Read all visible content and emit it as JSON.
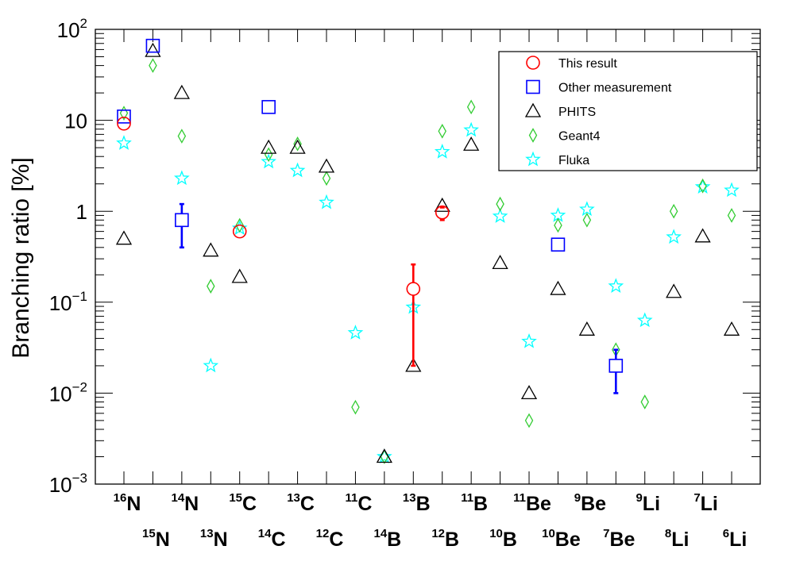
{
  "chart_data": {
    "type": "scatter",
    "ylabel": "Branching ratio [%]",
    "yscale": "log",
    "ylim": [
      0.001,
      100
    ],
    "y_tick_labels": [
      {
        "base": "10",
        "exp": "2"
      },
      {
        "base": "10",
        "exp": ""
      },
      {
        "base": "1",
        "exp": ""
      },
      {
        "base": "10",
        "exp": "−1"
      },
      {
        "base": "10",
        "exp": "−2"
      },
      {
        "base": "10",
        "exp": "−3"
      }
    ],
    "categories": [
      {
        "mass": "16",
        "el": "N"
      },
      {
        "mass": "15",
        "el": "N"
      },
      {
        "mass": "14",
        "el": "N"
      },
      {
        "mass": "13",
        "el": "N"
      },
      {
        "mass": "15",
        "el": "C"
      },
      {
        "mass": "14",
        "el": "C"
      },
      {
        "mass": "13",
        "el": "C"
      },
      {
        "mass": "12",
        "el": "C"
      },
      {
        "mass": "11",
        "el": "C"
      },
      {
        "mass": "14",
        "el": "B"
      },
      {
        "mass": "13",
        "el": "B"
      },
      {
        "mass": "12",
        "el": "B"
      },
      {
        "mass": "11",
        "el": "B"
      },
      {
        "mass": "10",
        "el": "B"
      },
      {
        "mass": "11",
        "el": "Be"
      },
      {
        "mass": "10",
        "el": "Be"
      },
      {
        "mass": "9",
        "el": "Be"
      },
      {
        "mass": "7",
        "el": "Be"
      },
      {
        "mass": "9",
        "el": "Li"
      },
      {
        "mass": "8",
        "el": "Li"
      },
      {
        "mass": "7",
        "el": "Li"
      },
      {
        "mass": "6",
        "el": "Li"
      }
    ],
    "legend_position": "top-right",
    "series": [
      {
        "name": "This result",
        "marker": "circle",
        "color": "#ff0000",
        "values": [
          9.2,
          null,
          null,
          null,
          0.6,
          null,
          null,
          null,
          null,
          null,
          0.14,
          0.97,
          null,
          null,
          null,
          null,
          null,
          null,
          null,
          null,
          null,
          null
        ],
        "err_low": [
          null,
          null,
          null,
          null,
          null,
          null,
          null,
          null,
          null,
          null,
          0.02,
          0.8,
          null,
          null,
          null,
          null,
          null,
          null,
          null,
          null,
          null,
          null
        ],
        "err_high": [
          null,
          null,
          null,
          null,
          null,
          null,
          null,
          null,
          null,
          null,
          0.26,
          1.1,
          null,
          null,
          null,
          null,
          null,
          null,
          null,
          null,
          null,
          null
        ]
      },
      {
        "name": "Other measurement",
        "marker": "square",
        "color": "#0000ff",
        "values": [
          11,
          66,
          0.8,
          null,
          null,
          14,
          null,
          null,
          null,
          null,
          null,
          null,
          null,
          null,
          null,
          0.43,
          null,
          0.02,
          null,
          null,
          null,
          null
        ],
        "err_low": [
          null,
          null,
          0.4,
          null,
          null,
          null,
          null,
          null,
          null,
          null,
          null,
          null,
          null,
          null,
          null,
          null,
          null,
          0.01,
          null,
          null,
          null,
          null
        ],
        "err_high": [
          null,
          null,
          1.2,
          null,
          null,
          null,
          null,
          null,
          null,
          null,
          null,
          null,
          null,
          null,
          null,
          null,
          null,
          0.03,
          null,
          null,
          null,
          null
        ]
      },
      {
        "name": "PHITS",
        "marker": "triangle",
        "color": "#000000",
        "values": [
          0.5,
          58,
          20,
          0.37,
          0.19,
          5.0,
          5.0,
          3.1,
          null,
          0.002,
          0.02,
          1.15,
          5.4,
          0.27,
          0.01,
          0.14,
          0.05,
          null,
          null,
          0.13,
          0.53,
          0.05
        ]
      },
      {
        "name": "Geant4",
        "marker": "diamond",
        "color": "#33cc33",
        "values": [
          12,
          40,
          6.7,
          0.15,
          0.7,
          4.2,
          5.5,
          2.3,
          0.007,
          0.002,
          null,
          7.6,
          14,
          1.2,
          0.005,
          0.7,
          0.8,
          0.03,
          0.008,
          1.0,
          1.9,
          0.9
        ]
      },
      {
        "name": "Fluka",
        "marker": "star",
        "color": "#00ffff",
        "values": [
          5.6,
          null,
          2.3,
          0.02,
          0.65,
          3.5,
          2.8,
          1.25,
          0.046,
          0.002,
          0.088,
          4.5,
          7.8,
          0.88,
          0.037,
          0.9,
          1.05,
          0.15,
          0.063,
          0.52,
          1.85,
          1.7
        ]
      }
    ]
  }
}
